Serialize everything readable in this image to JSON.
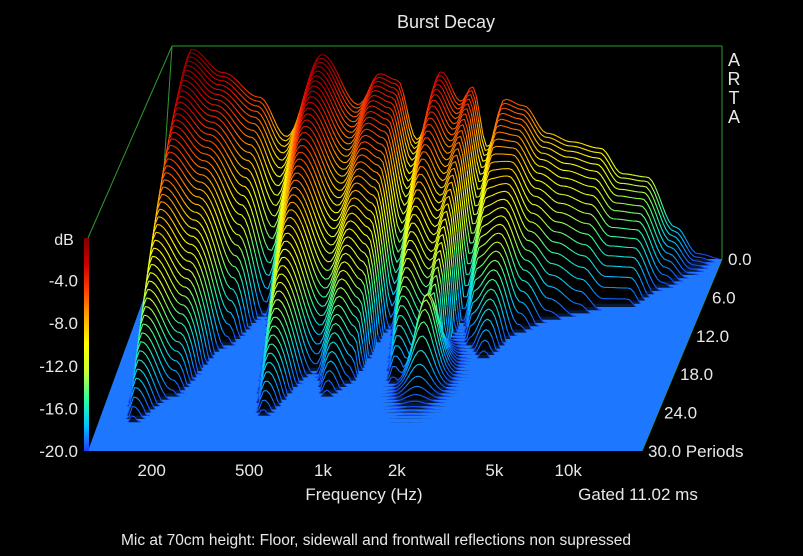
{
  "chart_data": {
    "type": "waterfall-3d",
    "title": "Burst Decay",
    "watermark": "ARTA",
    "xlabel": "Frequency (Hz)",
    "x_scale": "log",
    "xlim": [
      110,
      20000
    ],
    "x_ticks": [
      "200",
      "500",
      "1k",
      "2k",
      "5k",
      "10k"
    ],
    "x_tick_values": [
      200,
      500,
      1000,
      2000,
      5000,
      10000
    ],
    "zlabel": "dB",
    "zlim": [
      -20,
      0
    ],
    "z_ticks": [
      "-4.0",
      "-8.0",
      "-12.0",
      "-16.0",
      "-20.0"
    ],
    "z_tick_values": [
      -4,
      -8,
      -12,
      -16,
      -20
    ],
    "y_axis": "periods",
    "ylim": [
      0,
      30
    ],
    "y_ticks": [
      "0.0",
      "6.0",
      "12.0",
      "18.0",
      "24.0",
      "30.0 Periods"
    ],
    "y_tick_values": [
      0,
      6,
      12,
      18,
      24,
      30
    ],
    "gating_note": "Gated 11.02 ms",
    "caption": "Mic at 70cm height: Floor, sidewall and frontwall reflections non supressed",
    "colorscale": [
      "#1a3cff",
      "#00c8ff",
      "#33ff99",
      "#ccff33",
      "#ffff00",
      "#ffaa00",
      "#ff4400",
      "#cc0000",
      "#800000"
    ],
    "floor_color": "#1e78ff",
    "axis_color": "#2e9a2e",
    "series": [
      {
        "freq_hz": [
          110,
          150,
          200,
          280,
          360,
          500,
          700,
          850,
          1000,
          1200,
          1500,
          1800,
          2000,
          2300,
          2700,
          3200,
          4000,
          5000,
          6500,
          8000,
          10000,
          13000,
          16000,
          20000
        ],
        "level_db_at_0_periods": [
          -20,
          -0.3,
          -2.5,
          -4.8,
          -8.5,
          -0.8,
          -5.5,
          -2.6,
          -3.2,
          -8.8,
          -2.4,
          -5.2,
          -3.8,
          -9.5,
          -5.0,
          -5.6,
          -8.2,
          -9.0,
          -9.6,
          -12.0,
          -12.3,
          -17.0,
          -19.5,
          -20
        ],
        "decay_periods": [
          0,
          26,
          22,
          14,
          9,
          25,
          18,
          22,
          20,
          11,
          20,
          18,
          21,
          10,
          14,
          16,
          12,
          10,
          9,
          8,
          8,
          5,
          3,
          0
        ]
      }
    ],
    "late_peak": {
      "freq_hz": 2000,
      "periods": 18,
      "level_db": -12.5
    }
  }
}
